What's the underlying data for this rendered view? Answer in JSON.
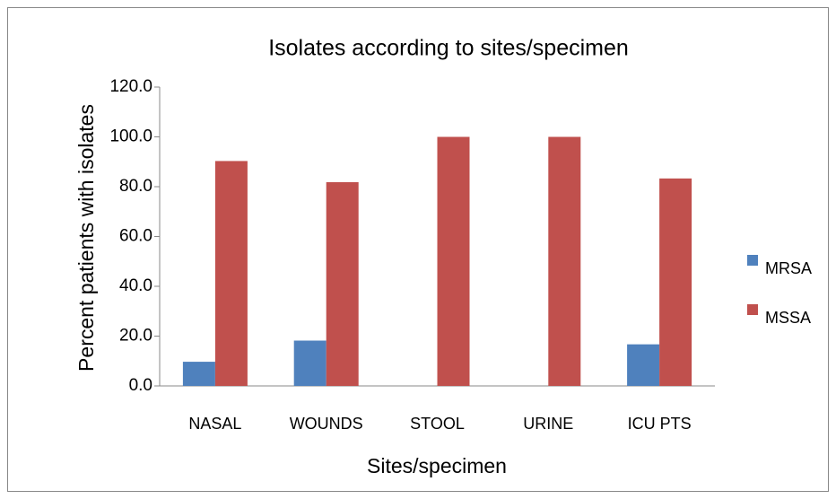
{
  "chart_data": {
    "type": "bar",
    "title": "Isolates according to sites/specimen",
    "x_label": "Sites/specimen",
    "y_label": "Percent patients with isolates",
    "categories": [
      "NASAL",
      "WOUNDS",
      "STOOL",
      "URINE",
      "ICU PTS"
    ],
    "series": [
      {
        "name": "MRSA",
        "color": "#4f81bd",
        "values": [
          9.7,
          18.2,
          0,
          0,
          16.7
        ]
      },
      {
        "name": "MSSA",
        "color": "#c0504d",
        "values": [
          90.3,
          81.8,
          100,
          100,
          83.3
        ]
      }
    ],
    "ylim": [
      0,
      120
    ],
    "yticks": [
      {
        "value": 0,
        "label": "0.0"
      },
      {
        "value": 20,
        "label": "20.0"
      },
      {
        "value": 40,
        "label": "40.0"
      },
      {
        "value": 60,
        "label": "60.0"
      },
      {
        "value": 80,
        "label": "80.0"
      },
      {
        "value": 100,
        "label": "100.0"
      },
      {
        "value": 120,
        "label": "120.0"
      }
    ],
    "legend": "right"
  }
}
